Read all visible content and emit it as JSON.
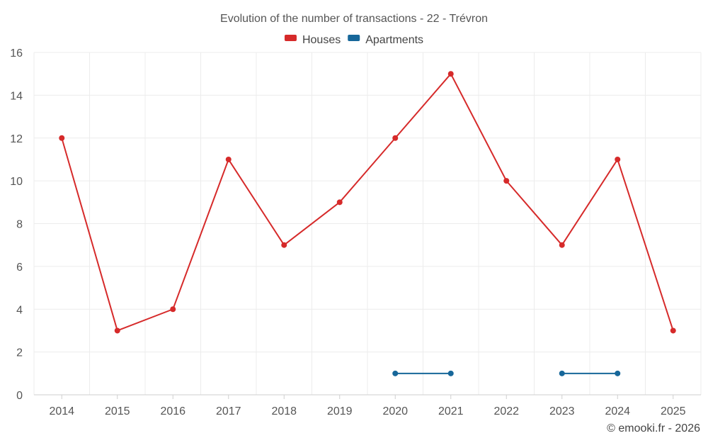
{
  "chart_data": {
    "type": "line",
    "title": "Evolution of the number of transactions - 22 - Trévron",
    "xlabel": "",
    "ylabel": "",
    "categories": [
      "2014",
      "2015",
      "2016",
      "2017",
      "2018",
      "2019",
      "2020",
      "2021",
      "2022",
      "2023",
      "2024",
      "2025"
    ],
    "ylim": [
      0,
      16
    ],
    "yticks": [
      0,
      2,
      4,
      6,
      8,
      10,
      12,
      14,
      16
    ],
    "grid": true,
    "legend_position": "top-center",
    "series": [
      {
        "name": "Houses",
        "color": "#d62a2a",
        "values": [
          12,
          3,
          4,
          11,
          7,
          9,
          12,
          15,
          10,
          7,
          11,
          3
        ]
      },
      {
        "name": "Apartments",
        "color": "#17679a",
        "values": [
          null,
          null,
          null,
          null,
          null,
          null,
          1,
          1,
          null,
          1,
          1,
          null
        ]
      }
    ]
  },
  "credit": "© emooki.fr - 2026"
}
